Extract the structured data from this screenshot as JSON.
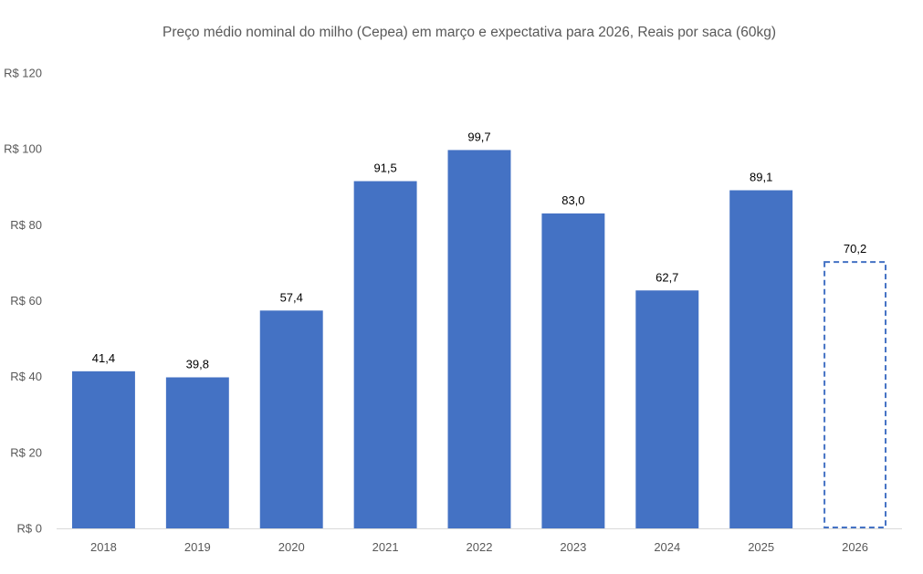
{
  "chart_data": {
    "type": "bar",
    "title": "Preço médio nominal do milho (Cepea) em março e expectativa para 2026, Reais por saca (60kg)",
    "xlabel": "",
    "ylabel": "",
    "categories": [
      "2018",
      "2019",
      "2020",
      "2021",
      "2022",
      "2023",
      "2024",
      "2025",
      "2026"
    ],
    "values": [
      41.4,
      39.8,
      57.4,
      91.5,
      99.7,
      83.0,
      62.7,
      89.1,
      70.2
    ],
    "data_labels": [
      "41,4",
      "39,8",
      "57,4",
      "91,5",
      "99,7",
      "83,0",
      "62,7",
      "89,1",
      "70,2"
    ],
    "projected": [
      false,
      false,
      false,
      false,
      false,
      false,
      false,
      false,
      true
    ],
    "ylim": [
      0,
      120
    ],
    "yticks": [
      0,
      20,
      40,
      60,
      80,
      100,
      120
    ],
    "ytick_labels": [
      "R$ 0",
      "R$ 20",
      "R$ 40",
      "R$ 60",
      "R$ 80",
      "R$ 100",
      "R$ 120"
    ],
    "grid": false,
    "legend": "none",
    "colors": {
      "bar": "#4472C4",
      "projected_outline": "#4472C4",
      "axis": "#D9D9D9",
      "text": "#595959",
      "data_label": "#000000"
    }
  }
}
